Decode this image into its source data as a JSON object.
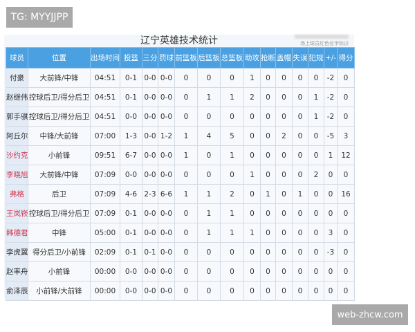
{
  "watermarks": {
    "top_left": "TG: MYYJJPP",
    "bottom_right": "web-zhcw.com"
  },
  "title": "辽宁英雄技术统计",
  "note": "场上球员红色名字标识",
  "colors": {
    "header_bg": "#4aa0e0",
    "on_court_name": "#d2344e"
  },
  "headers": [
    "球员",
    "位置",
    "出场时间",
    "投篮",
    "三分",
    "罚球",
    "前篮板",
    "后篮板",
    "总篮板",
    "助攻",
    "抢断",
    "盖帽",
    "失误",
    "犯规",
    "+/-",
    "得分"
  ],
  "rows": [
    {
      "on_court": false,
      "cells": [
        "付豪",
        "大前锋/中锋",
        "04:51",
        "0-1",
        "0-0",
        "0-0",
        "0",
        "0",
        "0",
        "1",
        "0",
        "0",
        "0",
        "0",
        "-2",
        "0"
      ]
    },
    {
      "on_court": false,
      "cells": [
        "赵继伟",
        "控球后卫/得分后卫",
        "04:51",
        "0-1",
        "0-0",
        "0-0",
        "0",
        "1",
        "1",
        "2",
        "0",
        "0",
        "0",
        "1",
        "-2",
        "0"
      ]
    },
    {
      "on_court": false,
      "cells": [
        "郭手骐",
        "控球后卫/得分后卫",
        "04:51",
        "0-0",
        "0-0",
        "0-0",
        "0",
        "0",
        "0",
        "0",
        "0",
        "0",
        "0",
        "1",
        "-2",
        "0"
      ]
    },
    {
      "on_court": false,
      "cells": [
        "阿丘尔",
        "中锋/大前锋",
        "07:00",
        "1-3",
        "0-0",
        "1-2",
        "1",
        "4",
        "5",
        "0",
        "0",
        "2",
        "0",
        "0",
        "-5",
        "3"
      ]
    },
    {
      "on_court": true,
      "cells": [
        "沙约克",
        "小前锋",
        "09:51",
        "6-7",
        "0-0",
        "0-0",
        "1",
        "0",
        "1",
        "0",
        "0",
        "0",
        "0",
        "0",
        "1",
        "12"
      ]
    },
    {
      "on_court": true,
      "cells": [
        "李晓旭",
        "大前锋/中锋",
        "07:09",
        "0-0",
        "0-0",
        "0-0",
        "0",
        "0",
        "0",
        "1",
        "0",
        "0",
        "0",
        "2",
        "0",
        "0"
      ]
    },
    {
      "on_court": true,
      "cells": [
        "弗格",
        "后卫",
        "07:09",
        "4-6",
        "2-3",
        "6-6",
        "1",
        "1",
        "2",
        "0",
        "1",
        "0",
        "1",
        "0",
        "0",
        "16"
      ]
    },
    {
      "on_court": true,
      "cells": [
        "王岚嵚",
        "控球后卫/得分后卫",
        "07:09",
        "0-1",
        "0-0",
        "0-0",
        "0",
        "1",
        "1",
        "0",
        "0",
        "0",
        "0",
        "0",
        "0",
        "0"
      ]
    },
    {
      "on_court": true,
      "cells": [
        "韩德君",
        "中锋",
        "05:00",
        "0-1",
        "0-0",
        "0-0",
        "0",
        "1",
        "1",
        "1",
        "0",
        "0",
        "0",
        "0",
        "3",
        "0"
      ]
    },
    {
      "on_court": false,
      "cells": [
        "李虎翼",
        "得分后卫/小前锋",
        "02:09",
        "0-1",
        "0-1",
        "0-0",
        "0",
        "0",
        "0",
        "0",
        "0",
        "0",
        "0",
        "0",
        "-3",
        "0"
      ]
    },
    {
      "on_court": false,
      "cells": [
        "赵率舟",
        "小前锋",
        "00:00",
        "0-0",
        "0-0",
        "0-0",
        "0",
        "0",
        "0",
        "0",
        "0",
        "0",
        "0",
        "0",
        "0",
        "0"
      ]
    },
    {
      "on_court": false,
      "cells": [
        "俞泽辰",
        "小前锋/大前锋",
        "00:00",
        "0-0",
        "0-0",
        "0-0",
        "0",
        "0",
        "0",
        "0",
        "0",
        "0",
        "0",
        "0",
        "0",
        "0"
      ]
    }
  ]
}
